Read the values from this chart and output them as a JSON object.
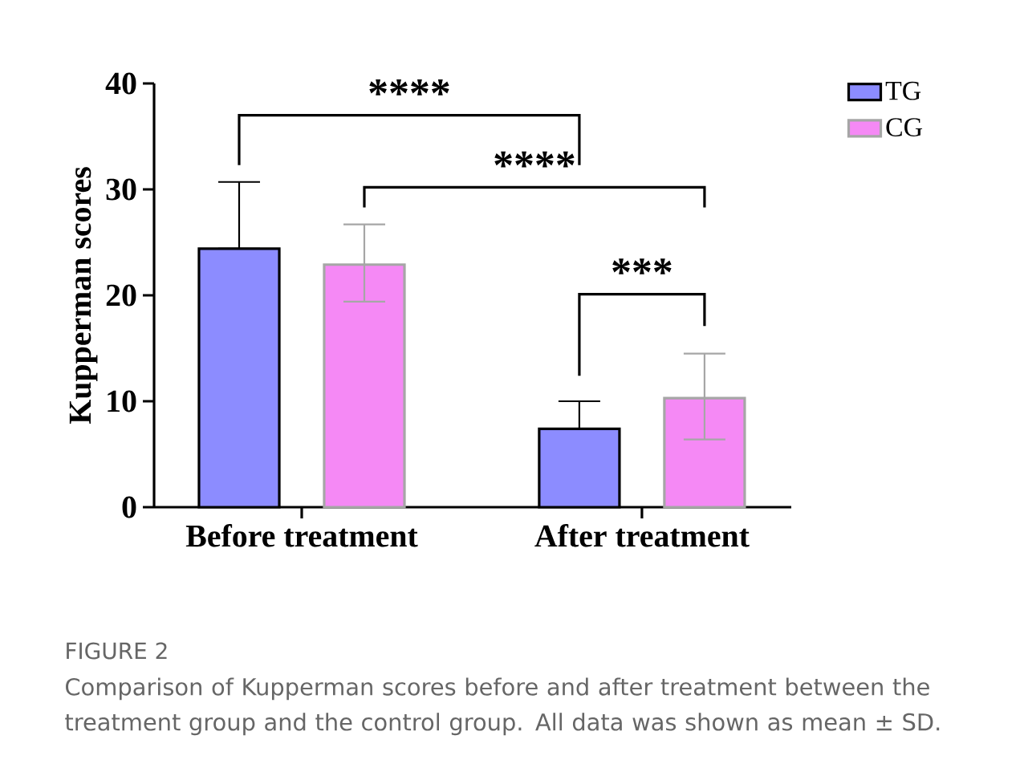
{
  "chart_data": {
    "type": "bar",
    "ylabel": "Kupperman scores",
    "categories": [
      "Before treatment",
      "After treatment"
    ],
    "series": [
      {
        "name": "TG",
        "color": "#8c8cff",
        "values": [
          24.4,
          7.4
        ],
        "errors": [
          [
            24.4,
            30.7
          ],
          [
            7.4,
            10.0
          ]
        ]
      },
      {
        "name": "CG",
        "color": "#f589f5",
        "values": [
          22.9,
          10.3
        ],
        "errors": [
          [
            19.4,
            26.7
          ],
          [
            6.4,
            14.5
          ]
        ]
      }
    ],
    "ylim": [
      0,
      40
    ],
    "yticks": [
      0,
      10,
      20,
      30,
      40
    ],
    "legend": "top right",
    "grid": false,
    "annotations": [
      "****",
      "****",
      "***",
      "FIGURE 2",
      "Comparison of Kupperman scores before and after treatment between the treatment group and the control group. All data was shown as mean ± SD."
    ]
  }
}
